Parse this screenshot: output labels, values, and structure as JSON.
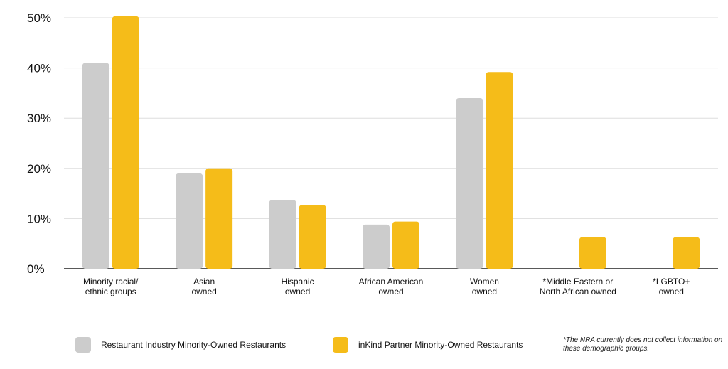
{
  "chart_data": {
    "type": "bar",
    "categories": [
      [
        "Minority racial/",
        "ethnic groups"
      ],
      [
        "Asian",
        "owned"
      ],
      [
        "Hispanic",
        "owned"
      ],
      [
        "African American",
        "owned"
      ],
      [
        "Women",
        "owned"
      ],
      [
        "*Middle Eastern or",
        "North African owned"
      ],
      [
        "*LGBTO+",
        "owned"
      ]
    ],
    "series": [
      {
        "name": "Restaurant Industry Minority-Owned Restaurants",
        "color": "#cccccc",
        "values": [
          41,
          19,
          13.7,
          8.8,
          34,
          null,
          null
        ]
      },
      {
        "name": "inKind Partner Minority-Owned Restaurants",
        "color": "#f5bc19",
        "values": [
          50.3,
          20,
          12.7,
          9.4,
          39.2,
          6.3,
          6.3
        ]
      }
    ],
    "yticks": [
      "0%",
      "10%",
      "20%",
      "30%",
      "40%",
      "50%"
    ],
    "ylim": [
      0,
      50
    ],
    "grid": true,
    "legend_position": "bottom"
  },
  "footnote": "*The NRA currently does not collect information on these demographic groups."
}
